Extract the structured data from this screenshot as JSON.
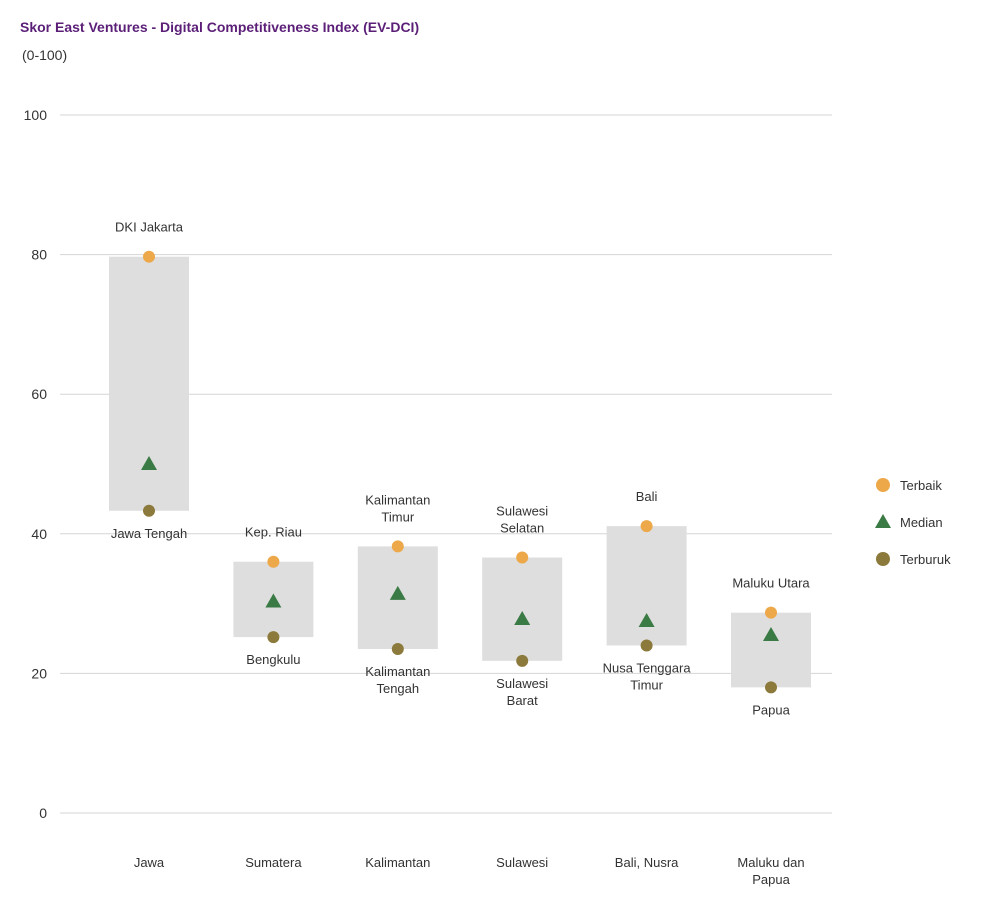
{
  "title": "Skor East Ventures - Digital Competitiveness Index (EV-DCI)",
  "subtitle": "(0-100)",
  "colors": {
    "best": "#eda84a",
    "median": "#3a7a44",
    "worst": "#8c7a3c",
    "range_box": "#dedede",
    "grid": "#d5d5d5"
  },
  "chart_data": {
    "type": "range-dot",
    "title": "Skor East Ventures - Digital Competitiveness Index (EV-DCI)",
    "subtitle": "(0-100)",
    "ylim": [
      0,
      100
    ],
    "yticks": [
      0,
      20,
      40,
      60,
      80,
      100
    ],
    "grid": true,
    "legend_position": "right",
    "legend": [
      {
        "key": "best",
        "label": "Terbaik",
        "marker": "circle"
      },
      {
        "key": "median",
        "label": "Median",
        "marker": "triangle"
      },
      {
        "key": "worst",
        "label": "Terburuk",
        "marker": "circle"
      }
    ],
    "categories": [
      {
        "name": [
          "Jawa"
        ],
        "best": 79.7,
        "median": 50.0,
        "worst": 43.3,
        "best_label": [
          "DKI Jakarta"
        ],
        "worst_label": [
          "Jawa Tengah"
        ]
      },
      {
        "name": [
          "Sumatera"
        ],
        "best": 36.0,
        "median": 30.3,
        "worst": 25.2,
        "best_label": [
          "Kep. Riau"
        ],
        "worst_label": [
          "Bengkulu"
        ]
      },
      {
        "name": [
          "Kalimantan"
        ],
        "best": 38.2,
        "median": 31.4,
        "worst": 23.5,
        "best_label": [
          "Kalimantan",
          "Timur"
        ],
        "worst_label": [
          "Kalimantan",
          "Tengah"
        ]
      },
      {
        "name": [
          "Sulawesi"
        ],
        "best": 36.6,
        "median": 27.8,
        "worst": 21.8,
        "best_label": [
          "Sulawesi",
          "Selatan"
        ],
        "worst_label": [
          "Sulawesi",
          "Barat"
        ]
      },
      {
        "name": [
          "Bali, Nusra"
        ],
        "best": 41.1,
        "median": 27.5,
        "worst": 24.0,
        "best_label": [
          "Bali"
        ],
        "worst_label": [
          "Nusa Tenggara",
          "Timur"
        ]
      },
      {
        "name": [
          "Maluku dan",
          "Papua"
        ],
        "best": 28.7,
        "median": 25.5,
        "worst": 18.0,
        "best_label": [
          "Maluku Utara"
        ],
        "worst_label": [
          "Papua"
        ]
      }
    ]
  }
}
